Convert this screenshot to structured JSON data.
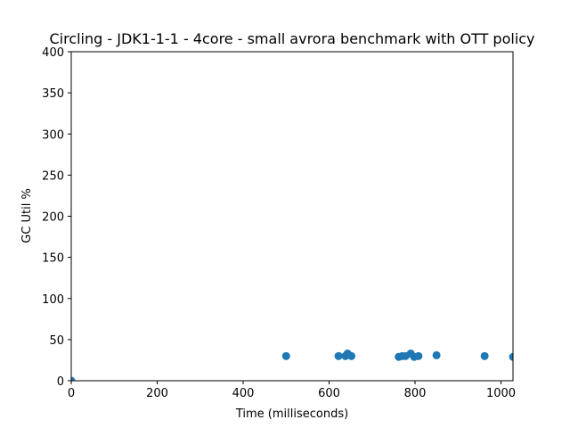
{
  "chart_data": {
    "type": "scatter",
    "title": "Circling - JDK1-1-1 - 4core -  small avrora benchmark with OTT policy",
    "xlabel": "Time (milliseconds)",
    "ylabel": "GC Util %",
    "xlim": [
      0,
      1028
    ],
    "ylim": [
      0,
      400
    ],
    "xticks": [
      0,
      200,
      400,
      600,
      800,
      1000
    ],
    "yticks": [
      0,
      50,
      100,
      150,
      200,
      250,
      300,
      350,
      400
    ],
    "grid": false,
    "marker_color": "#1f77b4",
    "points": [
      {
        "x": 0,
        "y": 0
      },
      {
        "x": 500,
        "y": 30
      },
      {
        "x": 622,
        "y": 30
      },
      {
        "x": 638,
        "y": 30
      },
      {
        "x": 643,
        "y": 33
      },
      {
        "x": 652,
        "y": 30
      },
      {
        "x": 762,
        "y": 29
      },
      {
        "x": 770,
        "y": 30
      },
      {
        "x": 778,
        "y": 30
      },
      {
        "x": 790,
        "y": 33
      },
      {
        "x": 798,
        "y": 29
      },
      {
        "x": 808,
        "y": 30
      },
      {
        "x": 850,
        "y": 31
      },
      {
        "x": 962,
        "y": 30
      },
      {
        "x": 1028,
        "y": 29
      }
    ]
  }
}
